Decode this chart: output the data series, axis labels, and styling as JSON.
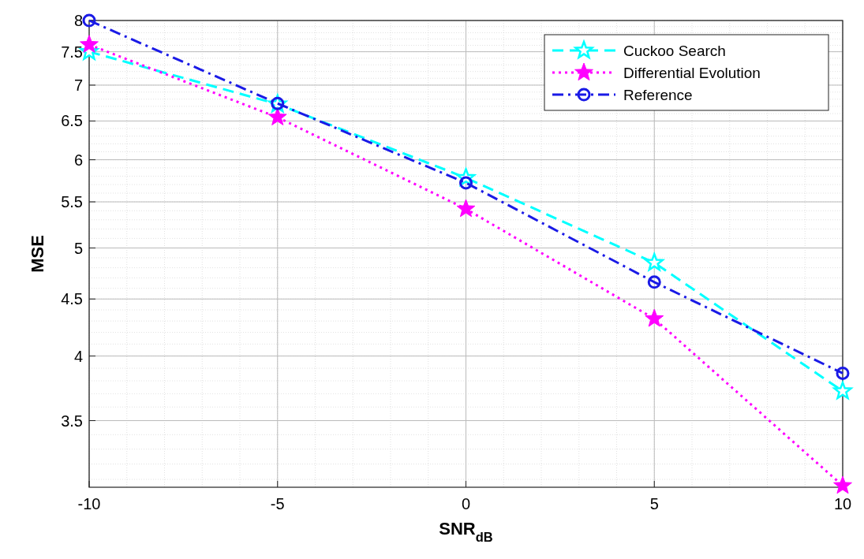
{
  "chart_data": {
    "type": "line",
    "xlabel": "SNR$_{dB}$",
    "ylabel": "MSE",
    "x": [
      -10,
      -5,
      0,
      5,
      10
    ],
    "series": [
      {
        "name": "Cuckoo Search",
        "color": "#00ffff",
        "values": [
          7.5,
          6.73,
          5.78,
          4.85,
          3.72
        ],
        "marker": "star",
        "line_style": "dashed"
      },
      {
        "name": "Differential Evolution",
        "color": "#ff00ff",
        "values": [
          7.61,
          6.55,
          5.42,
          4.32,
          3.06
        ],
        "marker": "star",
        "line_style": "dotted"
      },
      {
        "name": "Reference",
        "color": "#1a1ae6",
        "values": [
          8.0,
          6.74,
          5.72,
          4.66,
          3.86
        ],
        "marker": "circle",
        "line_style": "dashdot"
      }
    ],
    "log": "y",
    "xlim": [
      -10,
      10
    ],
    "xticks": [
      -10,
      -5,
      0,
      5,
      10
    ],
    "ylim": [
      3.05,
      8
    ],
    "yticks": [
      3.5,
      4,
      4.5,
      5,
      5.5,
      6,
      6.5,
      7,
      7.5,
      8
    ],
    "grid": true,
    "legend": "top right"
  }
}
